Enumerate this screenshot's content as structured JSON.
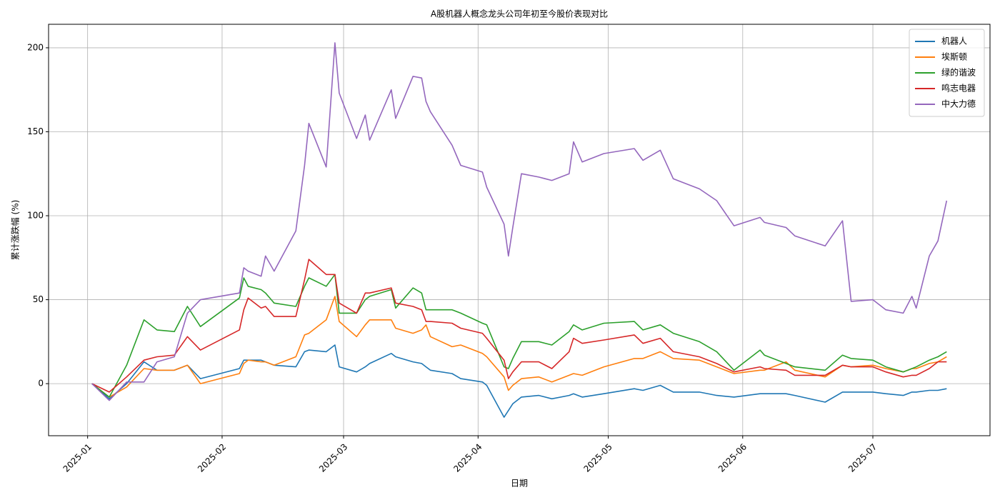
{
  "chart_data": {
    "type": "line",
    "title": "A股机器人概念龙头公司年初至今股价表现对比",
    "xlabel": "日期",
    "ylabel": "累计涨跌幅 (%)",
    "x": [
      "2025-01-02",
      "2025-01-06",
      "2025-01-10",
      "2025-01-14",
      "2025-01-17",
      "2025-01-21",
      "2025-01-24",
      "2025-01-27",
      "2025-02-05",
      "2025-02-06",
      "2025-02-07",
      "2025-02-10",
      "2025-02-11",
      "2025-02-13",
      "2025-02-18",
      "2025-02-20",
      "2025-02-21",
      "2025-02-25",
      "2025-02-27",
      "2025-02-28",
      "2025-03-04",
      "2025-03-06",
      "2025-03-07",
      "2025-03-12",
      "2025-03-13",
      "2025-03-17",
      "2025-03-19",
      "2025-03-20",
      "2025-03-21",
      "2025-03-26",
      "2025-03-28",
      "2025-04-02",
      "2025-04-03",
      "2025-04-07",
      "2025-04-08",
      "2025-04-09",
      "2025-04-11",
      "2025-04-15",
      "2025-04-18",
      "2025-04-22",
      "2025-04-23",
      "2025-04-25",
      "2025-04-30",
      "2025-05-07",
      "2025-05-09",
      "2025-05-13",
      "2025-05-16",
      "2025-05-22",
      "2025-05-26",
      "2025-05-30",
      "2025-06-05",
      "2025-06-06",
      "2025-06-11",
      "2025-06-13",
      "2025-06-20",
      "2025-06-24",
      "2025-06-26",
      "2025-07-01",
      "2025-07-04",
      "2025-07-08",
      "2025-07-10",
      "2025-07-11",
      "2025-07-14",
      "2025-07-16",
      "2025-07-18"
    ],
    "series": [
      {
        "name": "机器人",
        "color": "#1f77b4",
        "values": [
          0,
          -9,
          0,
          13,
          8,
          8,
          11,
          3,
          9,
          14,
          14,
          14,
          13,
          11,
          10,
          19,
          20,
          19,
          23,
          10,
          7,
          10,
          12,
          18,
          16,
          13,
          12,
          10,
          8,
          6,
          3,
          1,
          -1,
          -20,
          -16,
          -12,
          -8,
          -7,
          -9,
          -7,
          -6,
          -8,
          -6,
          -3,
          -4,
          -1,
          -5,
          -5,
          -7,
          -8,
          -6,
          -6,
          -6,
          -7,
          -11,
          -5,
          -5,
          -5,
          -6,
          -7,
          -5,
          -5,
          -4,
          -4,
          -3
        ]
      },
      {
        "name": "埃斯顿",
        "color": "#ff7f0e",
        "values": [
          0,
          -8,
          -2,
          9,
          8,
          8,
          11,
          0,
          6,
          12,
          14,
          13,
          13,
          11,
          16,
          29,
          30,
          38,
          52,
          37,
          28,
          35,
          38,
          38,
          33,
          30,
          32,
          35,
          28,
          22,
          23,
          18,
          16,
          4,
          -4,
          -1,
          3,
          4,
          1,
          5,
          6,
          5,
          10,
          15,
          15,
          19,
          15,
          14,
          10,
          6,
          8,
          8,
          13,
          8,
          4,
          11,
          10,
          11,
          9,
          7,
          9,
          9,
          12,
          13,
          16
        ]
      },
      {
        "name": "绿的谐波",
        "color": "#2ca02c",
        "values": [
          0,
          -8,
          11,
          38,
          32,
          31,
          46,
          34,
          51,
          63,
          58,
          56,
          54,
          48,
          46,
          58,
          63,
          58,
          65,
          42,
          42,
          50,
          52,
          56,
          45,
          57,
          54,
          44,
          44,
          44,
          42,
          36,
          35,
          10,
          9,
          15,
          25,
          25,
          23,
          31,
          35,
          32,
          36,
          37,
          32,
          35,
          30,
          25,
          19,
          8,
          20,
          17,
          12,
          10,
          8,
          17,
          15,
          14,
          10,
          7,
          9,
          10,
          14,
          16,
          19
        ]
      },
      {
        "name": "鸣志电器",
        "color": "#d62728",
        "values": [
          0,
          -5,
          4,
          14,
          16,
          17,
          28,
          20,
          32,
          44,
          51,
          45,
          46,
          40,
          40,
          62,
          74,
          65,
          65,
          48,
          42,
          54,
          54,
          57,
          48,
          46,
          44,
          37,
          37,
          36,
          33,
          30,
          27,
          14,
          3,
          7,
          13,
          13,
          9,
          19,
          27,
          24,
          26,
          29,
          24,
          27,
          19,
          16,
          12,
          7,
          10,
          9,
          8,
          5,
          5,
          11,
          10,
          10,
          7,
          4,
          5,
          5,
          9,
          13,
          13
        ]
      },
      {
        "name": "中大力德",
        "color": "#9467bd",
        "values": [
          0,
          -10,
          1,
          1,
          13,
          16,
          42,
          50,
          54,
          69,
          67,
          64,
          76,
          67,
          91,
          130,
          155,
          129,
          203,
          173,
          146,
          160,
          145,
          175,
          158,
          183,
          182,
          168,
          162,
          142,
          130,
          126,
          117,
          95,
          76,
          93,
          125,
          123,
          121,
          125,
          144,
          132,
          137,
          140,
          133,
          139,
          122,
          116,
          109,
          94,
          99,
          96,
          93,
          88,
          82,
          97,
          49,
          50,
          44,
          42,
          52,
          45,
          76,
          85,
          109
        ]
      }
    ],
    "xlim": [
      "2024-12-23",
      "2025-07-28"
    ],
    "xticks": [
      {
        "value": "2025-01-01",
        "label": "2025-01"
      },
      {
        "value": "2025-02-01",
        "label": "2025-02"
      },
      {
        "value": "2025-03-01",
        "label": "2025-03"
      },
      {
        "value": "2025-04-01",
        "label": "2025-04"
      },
      {
        "value": "2025-05-01",
        "label": "2025-05"
      },
      {
        "value": "2025-06-01",
        "label": "2025-06"
      },
      {
        "value": "2025-07-01",
        "label": "2025-07"
      }
    ],
    "ylim": [
      -31,
      214
    ],
    "yticks": [
      0,
      50,
      100,
      150,
      200
    ],
    "grid": true,
    "legend": "upper right"
  }
}
